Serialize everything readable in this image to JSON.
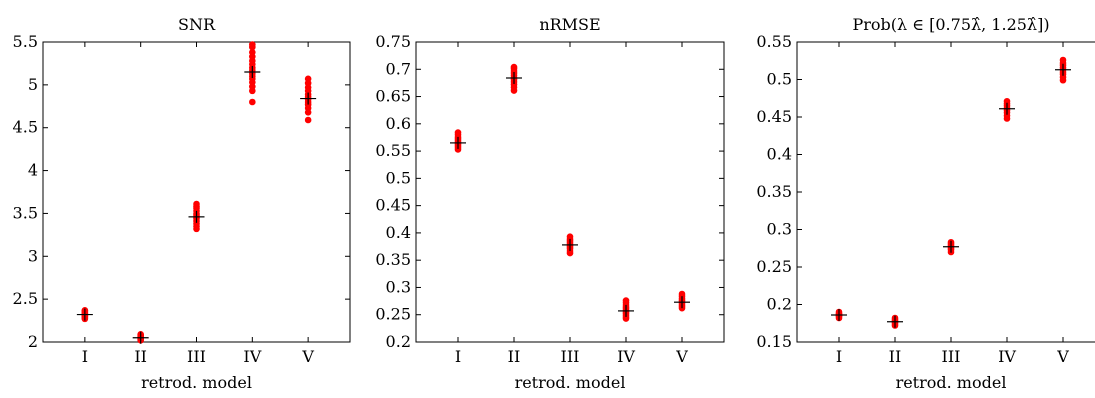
{
  "chart_data": [
    {
      "type": "scatter",
      "title": "SNR",
      "xlabel": "retrod. model",
      "ylabel": "",
      "categories": [
        "I",
        "II",
        "III",
        "IV",
        "V"
      ],
      "ylim": [
        2,
        5.5
      ],
      "yticks": [
        "2",
        "2.5",
        "3",
        "3.5",
        "4",
        "4.5",
        "5",
        "5.5"
      ],
      "point_color": "#ff0000",
      "mean_marker_color": "#000000",
      "series": [
        {
          "category": "I",
          "mean": 2.32,
          "points": [
            2.27,
            2.28,
            2.29,
            2.3,
            2.31,
            2.31,
            2.32,
            2.33,
            2.34,
            2.35,
            2.36,
            2.37
          ]
        },
        {
          "category": "II",
          "mean": 2.05,
          "points": [
            2.02,
            2.03,
            2.03,
            2.04,
            2.05,
            2.05,
            2.06,
            2.06,
            2.07,
            2.08,
            2.09
          ]
        },
        {
          "category": "III",
          "mean": 3.46,
          "points": [
            3.32,
            3.35,
            3.38,
            3.41,
            3.44,
            3.46,
            3.48,
            3.5,
            3.53,
            3.56,
            3.58,
            3.61
          ]
        },
        {
          "category": "IV",
          "mean": 5.15,
          "points": [
            4.8,
            4.93,
            4.98,
            5.03,
            5.07,
            5.1,
            5.13,
            5.17,
            5.2,
            5.24,
            5.28,
            5.33,
            5.38,
            5.44,
            5.47
          ]
        },
        {
          "category": "V",
          "mean": 4.84,
          "points": [
            4.59,
            4.68,
            4.73,
            4.77,
            4.8,
            4.83,
            4.86,
            4.89,
            4.93,
            4.97,
            5.02,
            5.07
          ]
        }
      ]
    },
    {
      "type": "scatter",
      "title": "nRMSE",
      "xlabel": "retrod. model",
      "ylabel": "",
      "categories": [
        "I",
        "II",
        "III",
        "IV",
        "V"
      ],
      "ylim": [
        0.2,
        0.75
      ],
      "yticks": [
        "0.2",
        "0.25",
        "0.3",
        "0.35",
        "0.4",
        "0.45",
        "0.5",
        "0.55",
        "0.6",
        "0.65",
        "0.7",
        "0.75"
      ],
      "point_color": "#ff0000",
      "mean_marker_color": "#000000",
      "series": [
        {
          "category": "I",
          "mean": 0.565,
          "points": [
            0.553,
            0.556,
            0.559,
            0.562,
            0.565,
            0.567,
            0.57,
            0.573,
            0.576,
            0.58,
            0.584
          ]
        },
        {
          "category": "II",
          "mean": 0.684,
          "points": [
            0.661,
            0.667,
            0.672,
            0.677,
            0.681,
            0.685,
            0.689,
            0.693,
            0.697,
            0.701,
            0.704
          ]
        },
        {
          "category": "III",
          "mean": 0.378,
          "points": [
            0.363,
            0.367,
            0.371,
            0.374,
            0.377,
            0.38,
            0.383,
            0.386,
            0.389,
            0.393
          ]
        },
        {
          "category": "IV",
          "mean": 0.257,
          "points": [
            0.243,
            0.246,
            0.249,
            0.252,
            0.255,
            0.258,
            0.261,
            0.264,
            0.268,
            0.272,
            0.276
          ]
        },
        {
          "category": "V",
          "mean": 0.273,
          "points": [
            0.262,
            0.265,
            0.268,
            0.271,
            0.274,
            0.277,
            0.28,
            0.284,
            0.288
          ]
        }
      ]
    },
    {
      "type": "scatter",
      "title": "Prob(λ ∈ [0.75λ̂, 1.25λ̂])",
      "xlabel": "retrod. model",
      "ylabel": "",
      "categories": [
        "I",
        "II",
        "III",
        "IV",
        "V"
      ],
      "ylim": [
        0.15,
        0.55
      ],
      "yticks": [
        "0.15",
        "0.2",
        "0.25",
        "0.3",
        "0.35",
        "0.4",
        "0.45",
        "0.5",
        "0.55"
      ],
      "point_color": "#ff0000",
      "mean_marker_color": "#000000",
      "series": [
        {
          "category": "I",
          "mean": 0.186,
          "points": [
            0.182,
            0.184,
            0.185,
            0.186,
            0.187,
            0.188,
            0.19
          ]
        },
        {
          "category": "II",
          "mean": 0.177,
          "points": [
            0.172,
            0.174,
            0.176,
            0.177,
            0.178,
            0.18,
            0.182
          ]
        },
        {
          "category": "III",
          "mean": 0.277,
          "points": [
            0.27,
            0.273,
            0.275,
            0.277,
            0.279,
            0.281,
            0.283
          ]
        },
        {
          "category": "IV",
          "mean": 0.461,
          "points": [
            0.448,
            0.452,
            0.456,
            0.459,
            0.462,
            0.465,
            0.468,
            0.471
          ]
        },
        {
          "category": "V",
          "mean": 0.513,
          "points": [
            0.499,
            0.503,
            0.507,
            0.51,
            0.513,
            0.516,
            0.519,
            0.522,
            0.526
          ]
        }
      ]
    }
  ]
}
